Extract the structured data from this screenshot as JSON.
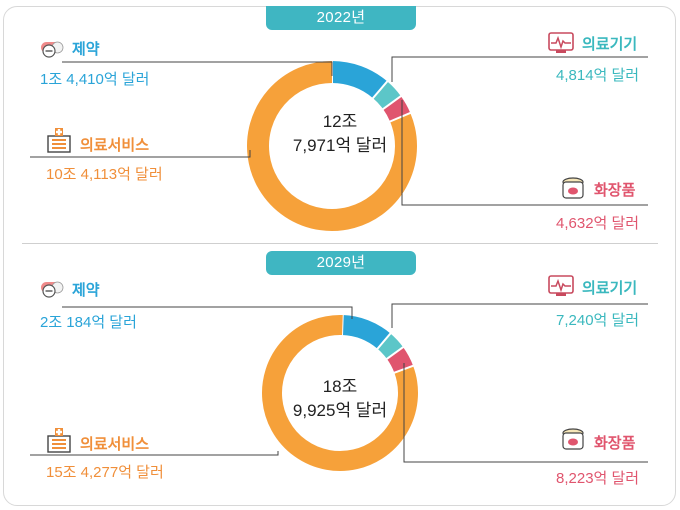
{
  "chart_data": [
    {
      "type": "pie",
      "title": "2022년",
      "center_label": [
        "12조",
        "7,971억 달러"
      ],
      "slices": [
        {
          "name": "제약",
          "value_label": "1조 4,410억 달러",
          "value": 14410,
          "color": "#2aa4d8"
        },
        {
          "name": "의료기기",
          "value_label": "4,814억 달러",
          "value": 4814,
          "color": "#5cc6c8"
        },
        {
          "name": "화장품",
          "value_label": "4,632억 달러",
          "value": 4632,
          "color": "#e0556e"
        },
        {
          "name": "의료서비스",
          "value_label": "10조 4,113억 달러",
          "value": 104113,
          "color": "#f6a13a"
        }
      ]
    },
    {
      "type": "pie",
      "title": "2029년",
      "center_label": [
        "18조",
        "9,925억 달러"
      ],
      "slices": [
        {
          "name": "제약",
          "value_label": "2조 184억 달러",
          "value": 20184,
          "color": "#2aa4d8"
        },
        {
          "name": "의료기기",
          "value_label": "7,240억 달러",
          "value": 7240,
          "color": "#5cc6c8"
        },
        {
          "name": "화장품",
          "value_label": "8,223억 달러",
          "value": 8223,
          "color": "#e0556e"
        },
        {
          "name": "의료서비스",
          "value_label": "15조 4,277억 달러",
          "value": 154277,
          "color": "#f6a13a"
        }
      ]
    }
  ],
  "icons": {
    "pharma": "pill-icon",
    "device": "monitor-icon",
    "service": "hospital-icon",
    "cosmetic": "cosmetic-jar-icon"
  }
}
